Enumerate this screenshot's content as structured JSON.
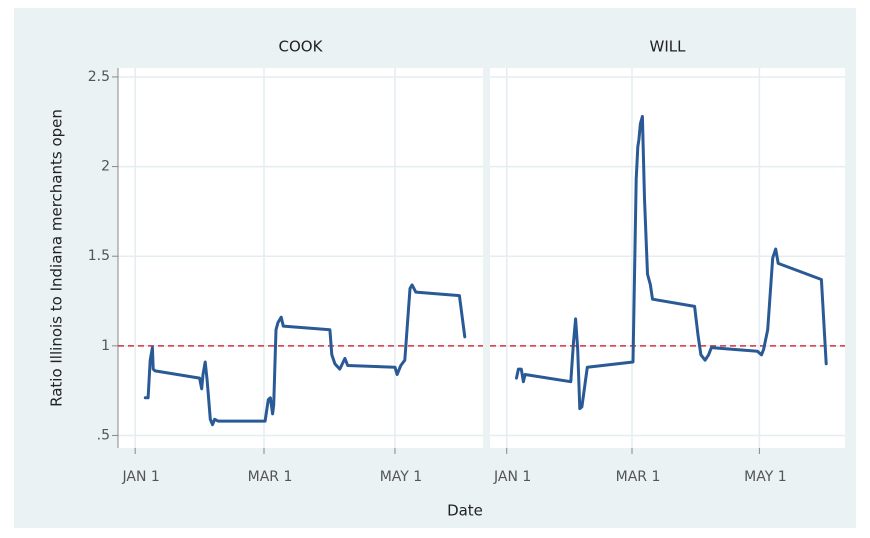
{
  "chart_data": {
    "type": "line",
    "y_label": "Ratio Illinois to Indiana merchants open",
    "x_label": "Date",
    "color": "#2a5a96",
    "reference_line": 1,
    "reference_color": "#d6323f",
    "grid": true,
    "xlim": [
      -8,
      162
    ],
    "xticks": [
      {
        "value": 0,
        "label": "JAN 1"
      },
      {
        "value": 60,
        "label": "MAR 1"
      },
      {
        "value": 121,
        "label": "MAY 1"
      }
    ],
    "ylim": [
      0.43,
      2.55
    ],
    "yticks": [
      {
        "value": 0.5,
        "label": ".5"
      },
      1,
      1.5,
      2,
      2.5
    ],
    "panels": [
      {
        "title": "COOK",
        "x": [
          4.7,
          6,
          7,
          8,
          8.4,
          9.3,
          30,
          31,
          31.6,
          32.6,
          33.5,
          35,
          36,
          37,
          38.6,
          60.5,
          62,
          63,
          64,
          64.5,
          65.6,
          66.5,
          68,
          69,
          90.7,
          91.6,
          93,
          95.3,
          97.7,
          99,
          121,
          122,
          123.7,
          125.6,
          128,
          129,
          130.7,
          151,
          153.5
        ],
        "values": [
          0.71,
          0.71,
          0.92,
          0.99,
          0.87,
          0.86,
          0.82,
          0.76,
          0.84,
          0.91,
          0.81,
          0.59,
          0.56,
          0.59,
          0.58,
          0.58,
          0.7,
          0.71,
          0.62,
          0.67,
          1.09,
          1.13,
          1.16,
          1.11,
          1.09,
          0.95,
          0.9,
          0.87,
          0.93,
          0.89,
          0.88,
          0.84,
          0.89,
          0.92,
          1.32,
          1.34,
          1.3,
          1.28,
          1.05
        ]
      },
      {
        "title": "WILL",
        "x": [
          4.7,
          5.6,
          7,
          8,
          8.8,
          30.7,
          31,
          32,
          33,
          34,
          35,
          36,
          38.6,
          60.5,
          62,
          62.8,
          63.3,
          64,
          65,
          66,
          67.4,
          68.8,
          69.8,
          90,
          91.6,
          93,
          95,
          96.7,
          98,
          120,
          122,
          123,
          125,
          127.4,
          128.8,
          130,
          150.7,
          153
        ],
        "values": [
          0.82,
          0.87,
          0.87,
          0.8,
          0.84,
          0.8,
          0.85,
          1.02,
          1.15,
          0.98,
          0.65,
          0.66,
          0.88,
          0.91,
          1.93,
          2.11,
          2.15,
          2.24,
          2.28,
          1.82,
          1.4,
          1.34,
          1.26,
          1.22,
          1.06,
          0.95,
          0.92,
          0.95,
          0.99,
          0.97,
          0.95,
          0.98,
          1.09,
          1.49,
          1.54,
          1.46,
          1.37,
          0.9
        ]
      }
    ]
  }
}
